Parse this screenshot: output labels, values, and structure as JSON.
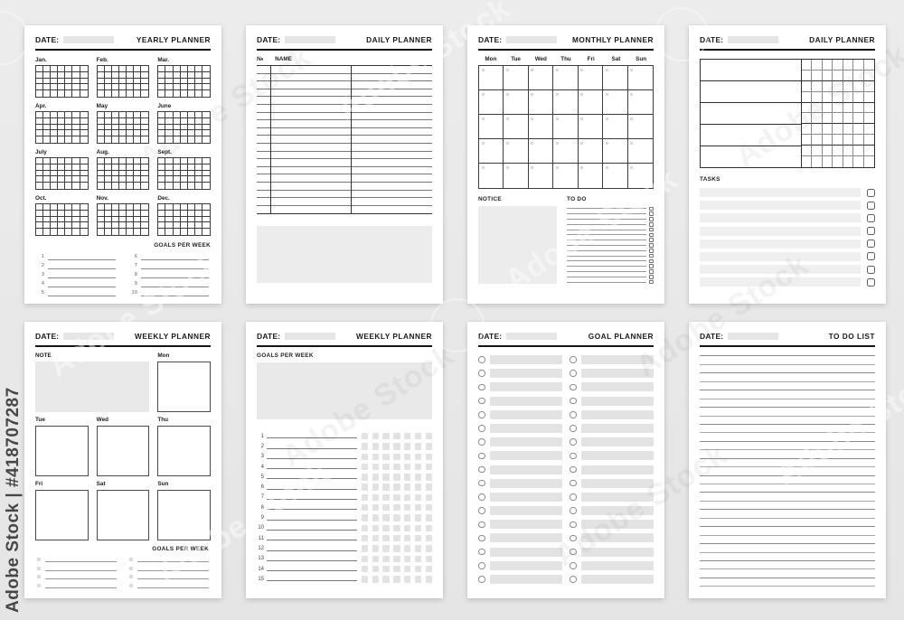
{
  "background_color": "#e9e9e9",
  "accent_color": "#161616",
  "watermark": {
    "side_text": "Adobe Stock | #418707287",
    "diagonal_text": "Adobe Stock"
  },
  "planners": {
    "yearly": {
      "date_label": "DATE:",
      "title": "YEARLY PLANNER",
      "months": [
        "Jan.",
        "Feb.",
        "Mar.",
        "Apr.",
        "May",
        "June",
        "July",
        "Aug.",
        "Sept.",
        "Oct.",
        "Nov.",
        "Dec."
      ],
      "month_grid": {
        "columns": 7,
        "rows": 5
      },
      "goals_label": "GOALS PER WEEK",
      "goal_numbers": [
        "1",
        "2",
        "3",
        "4",
        "5",
        "6",
        "7",
        "8",
        "9",
        "10"
      ]
    },
    "daily_list": {
      "date_label": "DATE:",
      "title": "DAILY PLANNER",
      "number_column_label": "№",
      "name_column_label": "NAME",
      "table_rows": 19
    },
    "monthly": {
      "date_label": "DATE:",
      "title": "MONTHLY PLANNER",
      "weekdays": [
        "Mon",
        "Tue",
        "Wed",
        "Thu",
        "Fri",
        "Sat",
        "Sun"
      ],
      "calendar": {
        "columns": 7,
        "rows": 5
      },
      "notice_label": "NOTICE",
      "todo_label": "TO DO",
      "todo_lines": 15
    },
    "daily_grid": {
      "date_label": "DATE:",
      "title": "DAILY PLANNER",
      "schedule_rows": 5,
      "habit_grid": {
        "columns": 7,
        "rows": 10
      },
      "tasks_label": "TASKS",
      "task_rows": 8
    },
    "weekly_boxes": {
      "date_label": "DATE:",
      "title": "WEEKLY PLANNER",
      "note_label": "NOTE",
      "days": [
        "Mon",
        "Tue",
        "Wed",
        "Thu",
        "Fri",
        "Sat",
        "Sun"
      ],
      "goals_label": "GOALS PER WEEK",
      "goal_lines": 8
    },
    "weekly_goals": {
      "date_label": "DATE:",
      "title": "WEEKLY PLANNER",
      "goals_label": "GOALS PER WEEK",
      "list_numbers": [
        "1",
        "2",
        "3",
        "4",
        "5",
        "6",
        "7",
        "8",
        "9",
        "10",
        "11",
        "12",
        "13",
        "14",
        "15"
      ],
      "squares_per_row": 7
    },
    "goal": {
      "date_label": "DATE:",
      "title": "GOAL PLANNER",
      "columns": 2,
      "rows_per_column": 17
    },
    "todo_list": {
      "date_label": "DATE:",
      "title": "TO DO LIST",
      "ruled_lines": 28
    }
  }
}
